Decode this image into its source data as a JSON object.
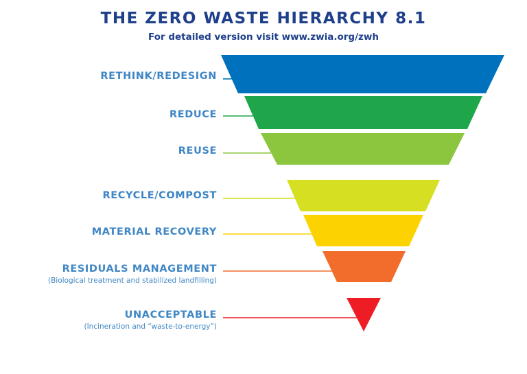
{
  "title": "THE ZERO WASTE HIERARCHY 8.1",
  "subtitle": "For detailed version visit www.zwia.org/zwh",
  "levels": [
    {
      "label": "RETHINK/REDESIGN",
      "sublabel": "",
      "color": "#0071bc"
    },
    {
      "label": "REDUCE",
      "sublabel": "",
      "color": "#1fa64a"
    },
    {
      "label": "REUSE",
      "sublabel": "",
      "color": "#8cc63f"
    },
    {
      "label": "RECYCLE/COMPOST",
      "sublabel": "",
      "color": "#d7df23"
    },
    {
      "label": "MATERIAL RECOVERY",
      "sublabel": "",
      "color": "#fcd300"
    },
    {
      "label": "RESIDUALS MANAGEMENT",
      "sublabel": "(Biological treatment and stabilized landfilling)",
      "color": "#f26c2b"
    },
    {
      "label": "UNACCEPTABLE",
      "sublabel": "(Incineration and “waste-to-energy”)",
      "color": "#ee1c25"
    }
  ],
  "colors": {
    "title": "#1e3f8a",
    "label": "#3f86c4"
  }
}
